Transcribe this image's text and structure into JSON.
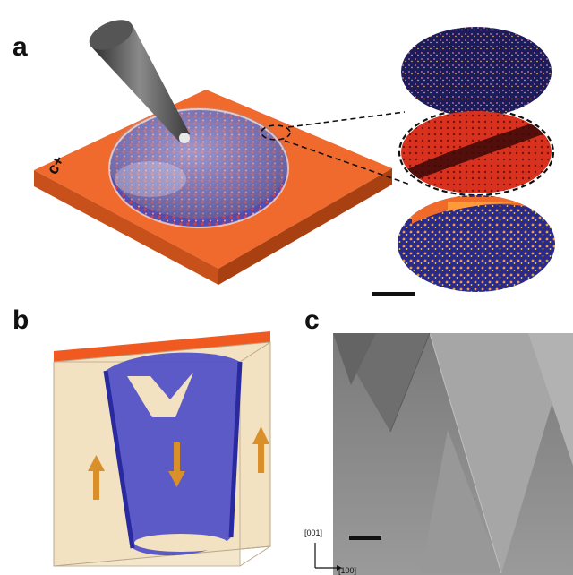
{
  "panels": {
    "a": {
      "label": "a",
      "surface_charge": "c+"
    },
    "b": {
      "label": "b"
    },
    "c": {
      "label": "c",
      "axis_vertical": "[001]",
      "axis_horizontal": "[100]"
    }
  },
  "colors": {
    "substrate_top": "#f0692d",
    "substrate_side": "#c8501a",
    "domain_blue": "#3c3cb4",
    "crystal_beige": "#f2e2c2",
    "arrow_orange": "#d9902a",
    "micrograph_gray": "#8c8c8c"
  }
}
